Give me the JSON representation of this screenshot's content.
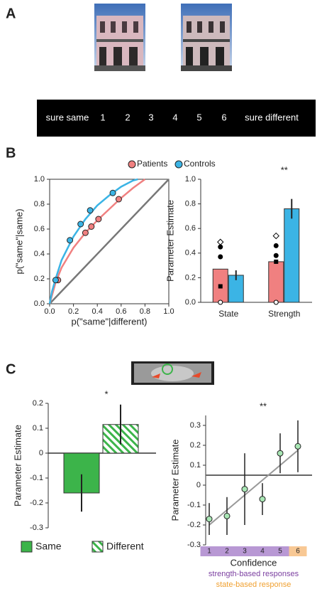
{
  "panel_labels": [
    "A",
    "B",
    "C"
  ],
  "scale": [
    "sure same",
    "1",
    "2",
    "3",
    "4",
    "5",
    "6",
    "sure different"
  ],
  "chart_data": [
    {
      "type": "line",
      "xlabel": "p(\"same\"|different)",
      "ylabel": "p(\"same\"|same)",
      "xlim": [
        0,
        1
      ],
      "ylim": [
        0,
        1
      ],
      "xticks": [
        {
          "value": 0,
          "label": "0.0"
        },
        0.2,
        0.4,
        0.6,
        0.8,
        {
          "value": 1,
          "label": "1.0"
        }
      ],
      "yticks": [
        {
          "value": 0,
          "label": "0.0"
        },
        0.2,
        0.4,
        0.6,
        0.8,
        {
          "value": 1,
          "label": "1.0"
        }
      ],
      "legend": "top",
      "series": [
        {
          "name": "Patients",
          "color": "#f08080",
          "x": [
            0.07,
            0.3,
            0.35,
            0.41,
            0.58
          ],
          "values": [
            0.19,
            0.57,
            0.62,
            0.68,
            0.84
          ],
          "fit_x": [
            0,
            0.05,
            0.1,
            0.2,
            0.3,
            0.4,
            0.5,
            0.6,
            0.7,
            0.8
          ],
          "fit_values": [
            0,
            0.17,
            0.29,
            0.45,
            0.57,
            0.67,
            0.76,
            0.85,
            0.93,
            1.0
          ]
        },
        {
          "name": "Controls",
          "color": "#3bb4e5",
          "x": [
            0.05,
            0.17,
            0.26,
            0.34,
            0.53
          ],
          "values": [
            0.19,
            0.51,
            0.64,
            0.75,
            0.89
          ],
          "fit_x": [
            0,
            0.02,
            0.05,
            0.1,
            0.2,
            0.3,
            0.4,
            0.5,
            0.6,
            0.7,
            0.74
          ],
          "fit_values": [
            0,
            0.1,
            0.2,
            0.35,
            0.54,
            0.68,
            0.79,
            0.87,
            0.94,
            0.99,
            1.0
          ]
        }
      ],
      "reference": {
        "x": [
          0,
          1
        ],
        "values": [
          0,
          1
        ],
        "color": "#777777"
      }
    },
    {
      "type": "bar",
      "ylabel": "Parameter Estimate",
      "categories": [
        "State",
        "Strength"
      ],
      "ylim": [
        0,
        1
      ],
      "yticks": [
        {
          "value": 0,
          "label": "0.0"
        },
        0.2,
        0.4,
        0.6,
        0.8,
        {
          "value": 1,
          "label": "1.0"
        }
      ],
      "series": [
        {
          "name": "Patients",
          "color": "#f08080",
          "values": [
            0.27,
            0.33
          ],
          "points": [
            [
              0.49,
              0.45,
              0.37,
              0.13,
              0
            ],
            [
              0.54,
              0.46,
              0.38,
              0.33,
              0
            ]
          ],
          "markers": [
            "open-diamond",
            "circle",
            "circle",
            "square",
            "open-circle"
          ]
        },
        {
          "name": "Controls",
          "color": "#3bb4e5",
          "values": [
            0.22,
            0.76
          ],
          "errors": [
            0.04,
            0.08
          ]
        }
      ],
      "annotations": [
        {
          "text": "**",
          "category": 1
        }
      ]
    },
    {
      "type": "bar",
      "ylabel": "Parameter Estimate",
      "categories": [
        "Same",
        "Different"
      ],
      "values": [
        -0.16,
        0.115
      ],
      "errors": [
        0.075,
        0.08
      ],
      "color": "#3cb44a",
      "hatch": [
        false,
        true
      ],
      "ylim": [
        -0.3,
        0.2
      ],
      "yticks": [
        -0.3,
        -0.2,
        -0.1,
        0,
        0.1,
        0.2
      ],
      "legend": "bottom",
      "annotations": [
        {
          "text": "*"
        }
      ]
    },
    {
      "type": "scatter",
      "ylabel": "Parameter Estimate",
      "xlabel": "Confidence",
      "x": [
        1,
        2,
        3,
        4,
        5,
        6
      ],
      "values": [
        -0.17,
        -0.155,
        -0.02,
        -0.07,
        0.16,
        0.195
      ],
      "errors": [
        0.08,
        0.095,
        0.18,
        0.08,
        0.1,
        0.13
      ],
      "color": "#a8e6b4",
      "xlim": [
        0.8,
        6.8
      ],
      "ylim": [
        -0.3,
        0.35
      ],
      "yticks": [
        -0.3,
        -0.2,
        -0.1,
        0,
        0.1,
        0.2,
        0.3
      ],
      "xticks": [
        1,
        2,
        3,
        4,
        5,
        6
      ],
      "hline": 0.05,
      "trend": {
        "x": [
          1,
          6
        ],
        "values": [
          -0.2,
          0.175
        ]
      },
      "bands": [
        {
          "from": 1,
          "to": 5,
          "color": "#b898d4"
        },
        {
          "from": 6,
          "to": 6,
          "color": "#f8c894"
        }
      ],
      "notes": [
        {
          "text": "strength-based responses",
          "color": "#7b3fa0"
        },
        {
          "text": "state-based response",
          "color": "#f0a030"
        }
      ],
      "annotations": [
        {
          "text": "**"
        }
      ]
    }
  ]
}
